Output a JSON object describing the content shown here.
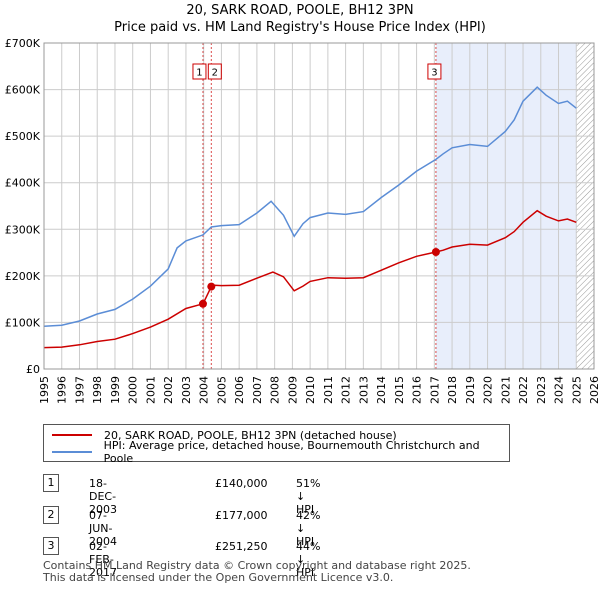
{
  "chart_data": {
    "type": "line",
    "title": "20, SARK ROAD, POOLE, BH12 3PN",
    "subtitle": "Price paid vs. HM Land Registry's House Price Index (HPI)",
    "xlim": [
      1995,
      2026
    ],
    "ylim": [
      0,
      700000
    ],
    "x_ticks": [
      "1995",
      "1996",
      "1997",
      "1998",
      "1999",
      "2000",
      "2001",
      "2002",
      "2003",
      "2004",
      "2005",
      "2006",
      "2007",
      "2008",
      "2009",
      "2010",
      "2011",
      "2012",
      "2013",
      "2014",
      "2015",
      "2016",
      "2017",
      "2018",
      "2019",
      "2020",
      "2021",
      "2022",
      "2023",
      "2024",
      "2025",
      "2026"
    ],
    "y_ticks": [
      {
        "value": 0,
        "label": "£0"
      },
      {
        "value": 100000,
        "label": "£100K"
      },
      {
        "value": 200000,
        "label": "£200K"
      },
      {
        "value": 300000,
        "label": "£300K"
      },
      {
        "value": 400000,
        "label": "£400K"
      },
      {
        "value": 500000,
        "label": "£500K"
      },
      {
        "value": 600000,
        "label": "£600K"
      },
      {
        "value": 700000,
        "label": "£700K"
      }
    ],
    "grid": true,
    "series": [
      {
        "name": "20, SARK ROAD, POOLE, BH12 3PN (detached house)",
        "color": "#cc0000",
        "points": [
          [
            1995.0,
            46000
          ],
          [
            1996.0,
            47000
          ],
          [
            1997.0,
            52000
          ],
          [
            1998.0,
            59000
          ],
          [
            1999.0,
            64000
          ],
          [
            2000.0,
            76000
          ],
          [
            2001.0,
            90000
          ],
          [
            2002.0,
            107000
          ],
          [
            2003.0,
            130000
          ],
          [
            2003.96,
            140000
          ],
          [
            2004.0,
            143000
          ],
          [
            2004.43,
            177000
          ],
          [
            2004.6,
            180000
          ],
          [
            2005.0,
            179000
          ],
          [
            2006.0,
            180000
          ],
          [
            2007.0,
            195000
          ],
          [
            2007.9,
            208000
          ],
          [
            2008.5,
            198000
          ],
          [
            2009.1,
            168000
          ],
          [
            2009.6,
            178000
          ],
          [
            2010.0,
            188000
          ],
          [
            2011.0,
            196000
          ],
          [
            2012.0,
            195000
          ],
          [
            2013.0,
            196000
          ],
          [
            2014.0,
            212000
          ],
          [
            2015.0,
            228000
          ],
          [
            2016.0,
            242000
          ],
          [
            2017.09,
            251250
          ],
          [
            2017.5,
            255000
          ],
          [
            2018.0,
            262000
          ],
          [
            2019.0,
            268000
          ],
          [
            2020.0,
            266000
          ],
          [
            2021.0,
            282000
          ],
          [
            2021.5,
            295000
          ],
          [
            2022.0,
            315000
          ],
          [
            2022.8,
            340000
          ],
          [
            2023.3,
            328000
          ],
          [
            2024.0,
            318000
          ],
          [
            2024.5,
            322000
          ],
          [
            2025.0,
            315000
          ]
        ]
      },
      {
        "name": "HPI: Average price, detached house, Bournemouth Christchurch and Poole",
        "color": "#5b8dd6",
        "points": [
          [
            1995.0,
            92000
          ],
          [
            1996.0,
            94000
          ],
          [
            1997.0,
            103000
          ],
          [
            1998.0,
            118000
          ],
          [
            1999.0,
            128000
          ],
          [
            2000.0,
            150000
          ],
          [
            2001.0,
            178000
          ],
          [
            2002.0,
            215000
          ],
          [
            2002.5,
            260000
          ],
          [
            2003.0,
            275000
          ],
          [
            2003.96,
            288000
          ],
          [
            2004.43,
            305000
          ],
          [
            2005.0,
            308000
          ],
          [
            2006.0,
            310000
          ],
          [
            2007.0,
            335000
          ],
          [
            2007.8,
            360000
          ],
          [
            2008.5,
            330000
          ],
          [
            2009.1,
            285000
          ],
          [
            2009.6,
            312000
          ],
          [
            2010.0,
            325000
          ],
          [
            2011.0,
            335000
          ],
          [
            2012.0,
            332000
          ],
          [
            2013.0,
            338000
          ],
          [
            2014.0,
            368000
          ],
          [
            2015.0,
            395000
          ],
          [
            2016.0,
            425000
          ],
          [
            2017.09,
            450000
          ],
          [
            2017.5,
            462000
          ],
          [
            2018.0,
            475000
          ],
          [
            2019.0,
            482000
          ],
          [
            2020.0,
            478000
          ],
          [
            2021.0,
            510000
          ],
          [
            2021.5,
            535000
          ],
          [
            2022.0,
            575000
          ],
          [
            2022.8,
            605000
          ],
          [
            2023.3,
            588000
          ],
          [
            2024.0,
            570000
          ],
          [
            2024.5,
            575000
          ],
          [
            2025.0,
            560000
          ]
        ]
      }
    ],
    "sales": [
      {
        "num": "1",
        "date": "18-DEC-2003",
        "x": 2003.96,
        "price": 140000,
        "price_label": "£140,000",
        "hpi_label": "51% ↓ HPI"
      },
      {
        "num": "2",
        "date": "07-JUN-2004",
        "x": 2004.43,
        "price": 177000,
        "price_label": "£177,000",
        "hpi_label": "42% ↓ HPI"
      },
      {
        "num": "3",
        "date": "02-FEB-2017",
        "x": 2017.09,
        "price": 251250,
        "price_label": "£251,250",
        "hpi_label": "44% ↓ HPI"
      }
    ],
    "shaded_from": 2017.09,
    "hatched_from": 2025.0
  },
  "legend": {
    "property": "20, SARK ROAD, POOLE, BH12 3PN (detached house)",
    "hpi": "HPI: Average price, detached house, Bournemouth Christchurch and Poole"
  },
  "footer": {
    "line1": "Contains HM Land Registry data © Crown copyright and database right 2025.",
    "line2": "This data is licensed under the Open Government Licence v3.0."
  },
  "colors": {
    "property": "#cc0000",
    "hpi": "#5b8dd6",
    "shade": "#e8eefb",
    "grid": "#cccccc"
  }
}
